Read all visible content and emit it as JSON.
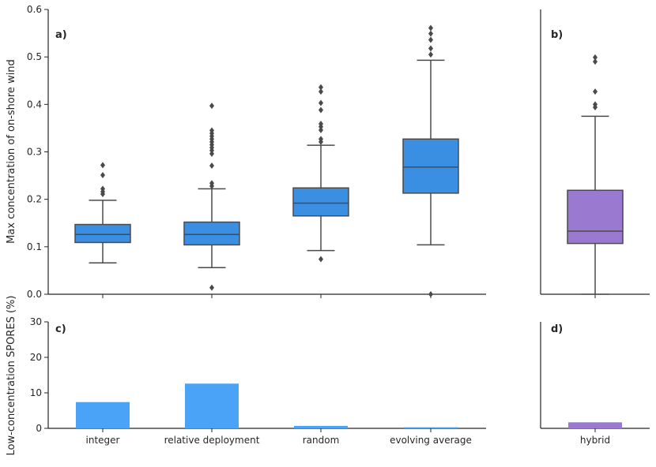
{
  "chart_data": [
    {
      "panel": "a)",
      "type": "box",
      "ylabel": "Max concentration of on-shore wind",
      "ylim": [
        0,
        0.6
      ],
      "yticks": [
        "0.0",
        "0.1",
        "0.2",
        "0.3",
        "0.4",
        "0.5",
        "0.6"
      ],
      "color": "#3a8fe3",
      "categories": [
        "integer",
        "relative deployment",
        "random",
        "evolving average"
      ],
      "boxes": [
        {
          "name": "integer",
          "whislo": 0.066,
          "q1": 0.109,
          "med": 0.126,
          "q3": 0.147,
          "whishi": 0.198,
          "fliers": [
            0.211,
            0.216,
            0.222,
            0.251,
            0.272
          ]
        },
        {
          "name": "relative deployment",
          "whislo": 0.056,
          "q1": 0.104,
          "med": 0.126,
          "q3": 0.152,
          "whishi": 0.222,
          "fliers": [
            0.014,
            0.228,
            0.234,
            0.271,
            0.296,
            0.303,
            0.309,
            0.315,
            0.321,
            0.327,
            0.333,
            0.339,
            0.345,
            0.397
          ]
        },
        {
          "name": "random",
          "whislo": 0.092,
          "q1": 0.165,
          "med": 0.192,
          "q3": 0.224,
          "whishi": 0.314,
          "fliers": [
            0.074,
            0.321,
            0.327,
            0.346,
            0.353,
            0.359,
            0.388,
            0.403,
            0.427,
            0.436
          ]
        },
        {
          "name": "evolving average",
          "whislo": 0.104,
          "q1": 0.213,
          "med": 0.268,
          "q3": 0.327,
          "whishi": 0.493,
          "fliers": [
            0.0,
            0.505,
            0.518,
            0.536,
            0.549,
            0.561
          ]
        }
      ]
    },
    {
      "panel": "b)",
      "type": "box",
      "ylim": [
        0,
        0.6
      ],
      "color": "#9a7ad1",
      "categories": [
        "hybrid"
      ],
      "boxes": [
        {
          "name": "hybrid",
          "whislo": 0.0,
          "q1": 0.107,
          "med": 0.133,
          "q3": 0.219,
          "whishi": 0.375,
          "fliers": [
            0.394,
            0.4,
            0.427,
            0.49,
            0.499
          ]
        }
      ]
    },
    {
      "panel": "c)",
      "type": "bar",
      "ylabel": "Low-concentration SPORES (%)",
      "ylim": [
        0,
        30
      ],
      "yticks": [
        "0",
        "10",
        "20",
        "30"
      ],
      "color": "#4aa3f7",
      "categories": [
        "integer",
        "relative deployment",
        "random",
        "evolving average"
      ],
      "values": [
        7.4,
        12.6,
        0.7,
        0.3
      ]
    },
    {
      "panel": "d)",
      "type": "bar",
      "ylim": [
        0,
        30
      ],
      "color": "#9a7ad1",
      "categories": [
        "hybrid"
      ],
      "values": [
        1.7
      ]
    }
  ]
}
